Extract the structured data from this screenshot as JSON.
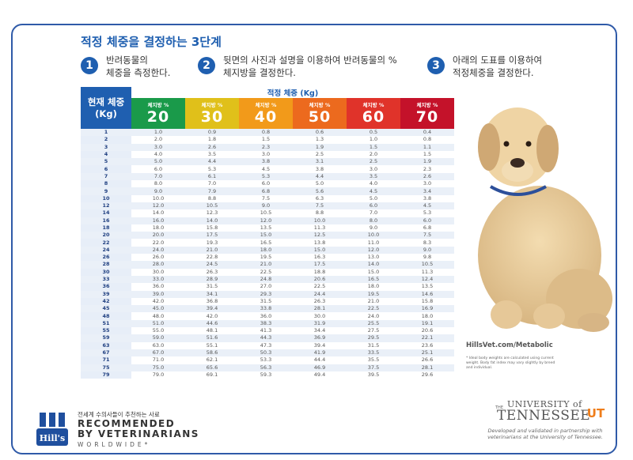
{
  "headline": "적정 체중을 결정하는 3단계",
  "steps": [
    {
      "num": "1",
      "text": "반려동물의\n체중을 측정한다."
    },
    {
      "num": "2",
      "text": "뒷면의 사진과 설명을 이용하여 반려동물의 %\n체지방을 결정한다."
    },
    {
      "num": "3",
      "text": "아래의 도표를 이용하여\n적정체중을 결정한다."
    }
  ],
  "table": {
    "left_header": "현재 체중\n(Kg)",
    "ideal_header": "적정 체중 (Kg)",
    "fat_label": "체지방 %",
    "columns": [
      {
        "pct": "20",
        "color": "#1a9a4a"
      },
      {
        "pct": "30",
        "color": "#e0c01a"
      },
      {
        "pct": "40",
        "color": "#f29a1a"
      },
      {
        "pct": "50",
        "color": "#ec6a1e"
      },
      {
        "pct": "60",
        "color": "#e0332a"
      },
      {
        "pct": "70",
        "color": "#c4122a"
      }
    ],
    "rows": [
      [
        "1",
        "1.0",
        "0.9",
        "0.8",
        "0.6",
        "0.5",
        "0.4"
      ],
      [
        "2",
        "2.0",
        "1.8",
        "1.5",
        "1.3",
        "1.0",
        "0.8"
      ],
      [
        "3",
        "3.0",
        "2.6",
        "2.3",
        "1.9",
        "1.5",
        "1.1"
      ],
      [
        "4",
        "4.0",
        "3.5",
        "3.0",
        "2.5",
        "2.0",
        "1.5"
      ],
      [
        "5",
        "5.0",
        "4.4",
        "3.8",
        "3.1",
        "2.5",
        "1.9"
      ],
      [
        "6",
        "6.0",
        "5.3",
        "4.5",
        "3.8",
        "3.0",
        "2.3"
      ],
      [
        "7",
        "7.0",
        "6.1",
        "5.3",
        "4.4",
        "3.5",
        "2.6"
      ],
      [
        "8",
        "8.0",
        "7.0",
        "6.0",
        "5.0",
        "4.0",
        "3.0"
      ],
      [
        "9",
        "9.0",
        "7.9",
        "6.8",
        "5.6",
        "4.5",
        "3.4"
      ],
      [
        "10",
        "10.0",
        "8.8",
        "7.5",
        "6.3",
        "5.0",
        "3.8"
      ],
      [
        "12",
        "12.0",
        "10.5",
        "9.0",
        "7.5",
        "6.0",
        "4.5"
      ],
      [
        "14",
        "14.0",
        "12.3",
        "10.5",
        "8.8",
        "7.0",
        "5.3"
      ],
      [
        "16",
        "16.0",
        "14.0",
        "12.0",
        "10.0",
        "8.0",
        "6.0"
      ],
      [
        "18",
        "18.0",
        "15.8",
        "13.5",
        "11.3",
        "9.0",
        "6.8"
      ],
      [
        "20",
        "20.0",
        "17.5",
        "15.0",
        "12.5",
        "10.0",
        "7.5"
      ],
      [
        "22",
        "22.0",
        "19.3",
        "16.5",
        "13.8",
        "11.0",
        "8.3"
      ],
      [
        "24",
        "24.0",
        "21.0",
        "18.0",
        "15.0",
        "12.0",
        "9.0"
      ],
      [
        "26",
        "26.0",
        "22.8",
        "19.5",
        "16.3",
        "13.0",
        "9.8"
      ],
      [
        "28",
        "28.0",
        "24.5",
        "21.0",
        "17.5",
        "14.0",
        "10.5"
      ],
      [
        "30",
        "30.0",
        "26.3",
        "22.5",
        "18.8",
        "15.0",
        "11.3"
      ],
      [
        "33",
        "33.0",
        "28.9",
        "24.8",
        "20.6",
        "16.5",
        "12.4"
      ],
      [
        "36",
        "36.0",
        "31.5",
        "27.0",
        "22.5",
        "18.0",
        "13.5"
      ],
      [
        "39",
        "39.0",
        "34.1",
        "29.3",
        "24.4",
        "19.5",
        "14.6"
      ],
      [
        "42",
        "42.0",
        "36.8",
        "31.5",
        "26.3",
        "21.0",
        "15.8"
      ],
      [
        "45",
        "45.0",
        "39.4",
        "33.8",
        "28.1",
        "22.5",
        "16.9"
      ],
      [
        "48",
        "48.0",
        "42.0",
        "36.0",
        "30.0",
        "24.0",
        "18.0"
      ],
      [
        "51",
        "51.0",
        "44.6",
        "38.3",
        "31.9",
        "25.5",
        "19.1"
      ],
      [
        "55",
        "55.0",
        "48.1",
        "41.3",
        "34.4",
        "27.5",
        "20.6"
      ],
      [
        "59",
        "59.0",
        "51.6",
        "44.3",
        "36.9",
        "29.5",
        "22.1"
      ],
      [
        "63",
        "63.0",
        "55.1",
        "47.3",
        "39.4",
        "31.5",
        "23.6"
      ],
      [
        "67",
        "67.0",
        "58.6",
        "50.3",
        "41.9",
        "33.5",
        "25.1"
      ],
      [
        "71",
        "71.0",
        "62.1",
        "53.3",
        "44.4",
        "35.5",
        "26.6"
      ],
      [
        "75",
        "75.0",
        "65.6",
        "56.3",
        "46.9",
        "37.5",
        "28.1"
      ],
      [
        "79",
        "79.0",
        "69.1",
        "59.3",
        "49.4",
        "39.5",
        "29.6"
      ]
    ]
  },
  "site_url": "HillsVet.com/Metabolic",
  "footnote": "* Ideal body weights are calculated using current weight. Body fat index may vary slightly by breed and individual.",
  "footer": {
    "hills_logo_text": "Hill's",
    "rec_small": "전세계 수의사들이 추천하는 사료",
    "rec_big": "RECOMMENDED\nBY VETERINARIANS",
    "rec_worldwide": "WORLDWIDE*",
    "ut_the": "THE",
    "ut_university": "UNIVERSITY of",
    "ut_tennessee": "TENNESSEE",
    "ut_mark": "UT",
    "developed": "Developed and validated in partnership with veterinarians at the University of Tennessee."
  },
  "colors": {
    "brand_blue": "#1f5fb0",
    "hills_blue": "#1f4f9e",
    "ut_orange": "#ef7d1a"
  }
}
